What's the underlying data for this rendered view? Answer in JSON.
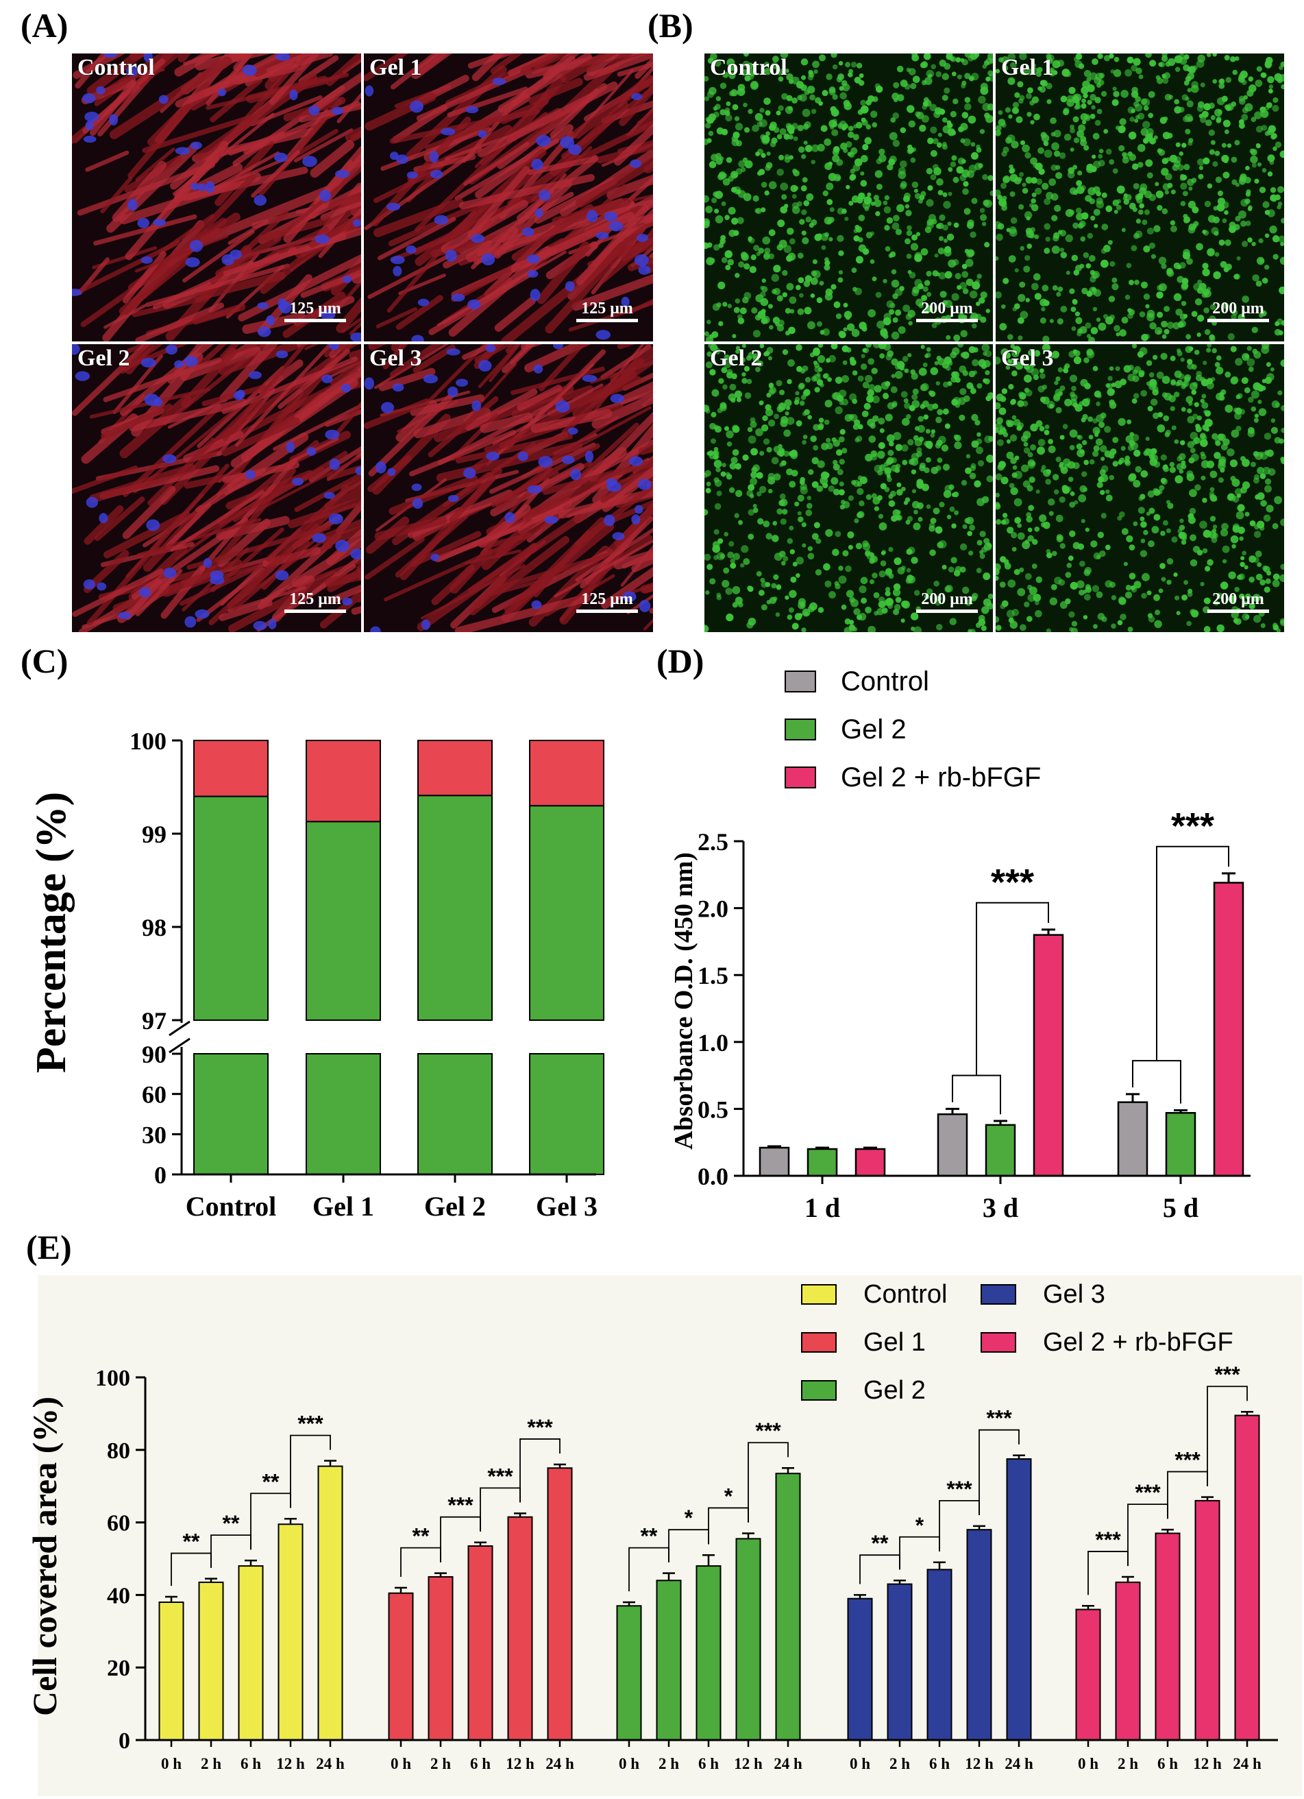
{
  "panel_labels": {
    "a": "(A)",
    "b": "(B)",
    "c": "(C)",
    "d": "(D)",
    "e": "(E)"
  },
  "colors": {
    "red_stain": "#8a1820",
    "blue_nuclei": "#3a3fd8",
    "green_cells": "#3ec43a",
    "grey": "#a09ca0",
    "green_bar": "#4daa3c",
    "red_bar": "#e84650",
    "pink_bar": "#e8336e",
    "yellow_bar": "#eeea4a",
    "navy_bar": "#2e3f99"
  },
  "micrographs_a": [
    {
      "label": "Control",
      "scale": "125 μm"
    },
    {
      "label": "Gel 1",
      "scale": "125 μm"
    },
    {
      "label": "Gel 2",
      "scale": "125 μm"
    },
    {
      "label": "Gel 3",
      "scale": "125 μm"
    }
  ],
  "micrographs_b": [
    {
      "label": "Control",
      "scale": "200 μm"
    },
    {
      "label": "Gel 1",
      "scale": "200 μm"
    },
    {
      "label": "Gel 2",
      "scale": "200 μm"
    },
    {
      "label": "Gel 3",
      "scale": "200 μm"
    }
  ],
  "chart_data": [
    {
      "panel": "C",
      "type": "bar",
      "stacked": true,
      "categories": [
        "Control",
        "Gel 1",
        "Gel 2",
        "Gel 3"
      ],
      "series": [
        {
          "color": "#4daa3c",
          "values": [
            99.4,
            99.13,
            99.41,
            99.3
          ]
        },
        {
          "color": "#e84650",
          "values": [
            0.6,
            0.87,
            0.59,
            0.7
          ]
        }
      ],
      "ylabel": "Percentage (%)",
      "axis_break": true,
      "yticks_lower": [
        "0",
        "30",
        "60",
        "90"
      ],
      "yticks_upper": [
        "97",
        "98",
        "99",
        "100"
      ],
      "ylim_lower": [
        0,
        90
      ],
      "ylim_upper": [
        97,
        100
      ]
    },
    {
      "panel": "D",
      "type": "bar",
      "categories": [
        "1 d",
        "3 d",
        "5 d"
      ],
      "series": [
        {
          "name": "Control",
          "color": "#a09ca0",
          "values": [
            0.21,
            0.46,
            0.55
          ],
          "errors": [
            0.01,
            0.04,
            0.06
          ]
        },
        {
          "name": "Gel 2",
          "color": "#4daa3c",
          "values": [
            0.2,
            0.38,
            0.47
          ],
          "errors": [
            0.01,
            0.03,
            0.02
          ]
        },
        {
          "name": "Gel 2 + rb-bFGF",
          "color": "#e8336e",
          "values": [
            0.2,
            1.8,
            2.19
          ],
          "errors": [
            0.01,
            0.04,
            0.07
          ]
        }
      ],
      "ylabel": "Absorbance O.D. (450 nm)",
      "yticks": [
        "0.0",
        "0.5",
        "1.0",
        "1.5",
        "2.0",
        "2.5"
      ],
      "ylim": [
        0,
        2.5
      ],
      "legend": "top",
      "significance": [
        "***",
        "***"
      ]
    },
    {
      "panel": "E",
      "type": "bar",
      "groups": [
        "Control",
        "Gel 1",
        "Gel 2",
        "Gel 3",
        "Gel 2 + rb-bFGF"
      ],
      "x": [
        "0 h",
        "2 h",
        "6 h",
        "12 h",
        "24 h"
      ],
      "series": [
        {
          "name": "Control",
          "color": "#eeea4a",
          "values": [
            38,
            43.5,
            48,
            59.5,
            75.5
          ],
          "errors": [
            1.5,
            1,
            1.5,
            1.5,
            1.5
          ],
          "stars": [
            "**",
            "**",
            "**",
            "***"
          ]
        },
        {
          "name": "Gel 1",
          "color": "#e84650",
          "values": [
            40.5,
            45,
            53.5,
            61.5,
            75
          ],
          "errors": [
            1.5,
            1,
            1,
            1,
            1
          ],
          "stars": [
            "**",
            "***",
            "***",
            "***"
          ]
        },
        {
          "name": "Gel 2",
          "color": "#4daa3c",
          "values": [
            37,
            44,
            48,
            55.5,
            73.5
          ],
          "errors": [
            1,
            2,
            3,
            1.5,
            1.5
          ],
          "stars": [
            "**",
            "*",
            "*",
            "***"
          ]
        },
        {
          "name": "Gel 3",
          "color": "#2e3f99",
          "values": [
            39,
            43,
            47,
            58,
            77.5
          ],
          "errors": [
            1,
            1,
            2,
            1,
            1
          ],
          "stars": [
            "**",
            "*",
            "***",
            "***"
          ]
        },
        {
          "name": "Gel 2 + rb-bFGF",
          "color": "#e8336e",
          "values": [
            36,
            43.5,
            57,
            66,
            89.5
          ],
          "errors": [
            1,
            1.5,
            1,
            1,
            1
          ],
          "stars": [
            "***",
            "***",
            "***",
            "***"
          ]
        }
      ],
      "ylabel": "Cell covered area (%)",
      "yticks": [
        "0",
        "20",
        "40",
        "60",
        "80",
        "100"
      ],
      "ylim": [
        0,
        100
      ],
      "legend": "top-right"
    }
  ]
}
